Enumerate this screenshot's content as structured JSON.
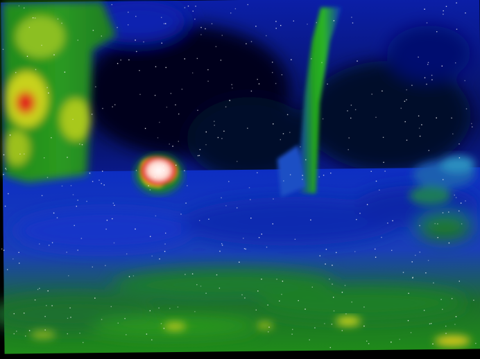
{
  "image": {
    "kind": "thermal-infrared-photo",
    "palette": {
      "cold": "#000033",
      "cool": "#0a2fbf",
      "mid": "#1f8a1a",
      "warm": "#c8d21a",
      "hot": "#e0281a",
      "hottest": "#ffffff"
    },
    "subjects": [
      "animal-heat-signature",
      "tree-trunk",
      "left-structure",
      "foreground-grass"
    ]
  }
}
